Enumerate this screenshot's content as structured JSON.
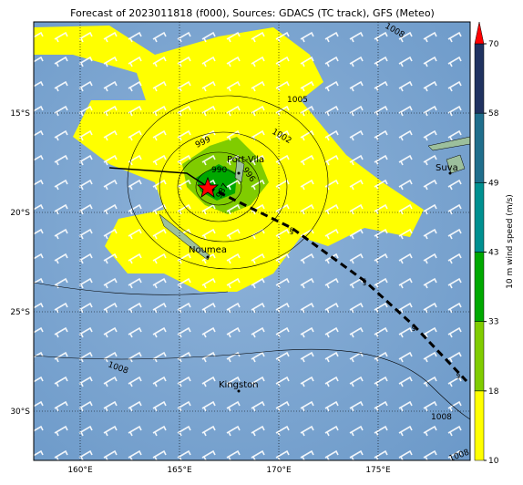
{
  "title": "Forecast of 2023011818 (f000), Sources: GDACS (TC track), GFS (Meteo)",
  "map": {
    "lon_ticks": [
      {
        "value": 160,
        "label": "160°E"
      },
      {
        "value": 165,
        "label": "165°E"
      },
      {
        "value": 170,
        "label": "170°E"
      },
      {
        "value": 175,
        "label": "175°E"
      }
    ],
    "lat_ticks": [
      {
        "value": -15,
        "label": "15°S"
      },
      {
        "value": -20,
        "label": "20°S"
      },
      {
        "value": -25,
        "label": "25°S"
      },
      {
        "value": -30,
        "label": "30°S"
      }
    ],
    "places": [
      "Port-Vila",
      "Noumea",
      "Kingston",
      "Suva"
    ],
    "contour_labels": [
      "1008",
      "1005",
      "1002",
      "999",
      "996",
      "990",
      "987",
      "1008",
      "1008",
      "1008"
    ]
  },
  "colorbar": {
    "label": "10 m wind speed (m/s)",
    "ticks": [
      10,
      18,
      33,
      43,
      49,
      58,
      70
    ],
    "colors": [
      "#ffff00",
      "#80cc00",
      "#00a800",
      "#009090",
      "#1f6e8c",
      "#203260"
    ],
    "extend_color": "#ff0000"
  }
}
